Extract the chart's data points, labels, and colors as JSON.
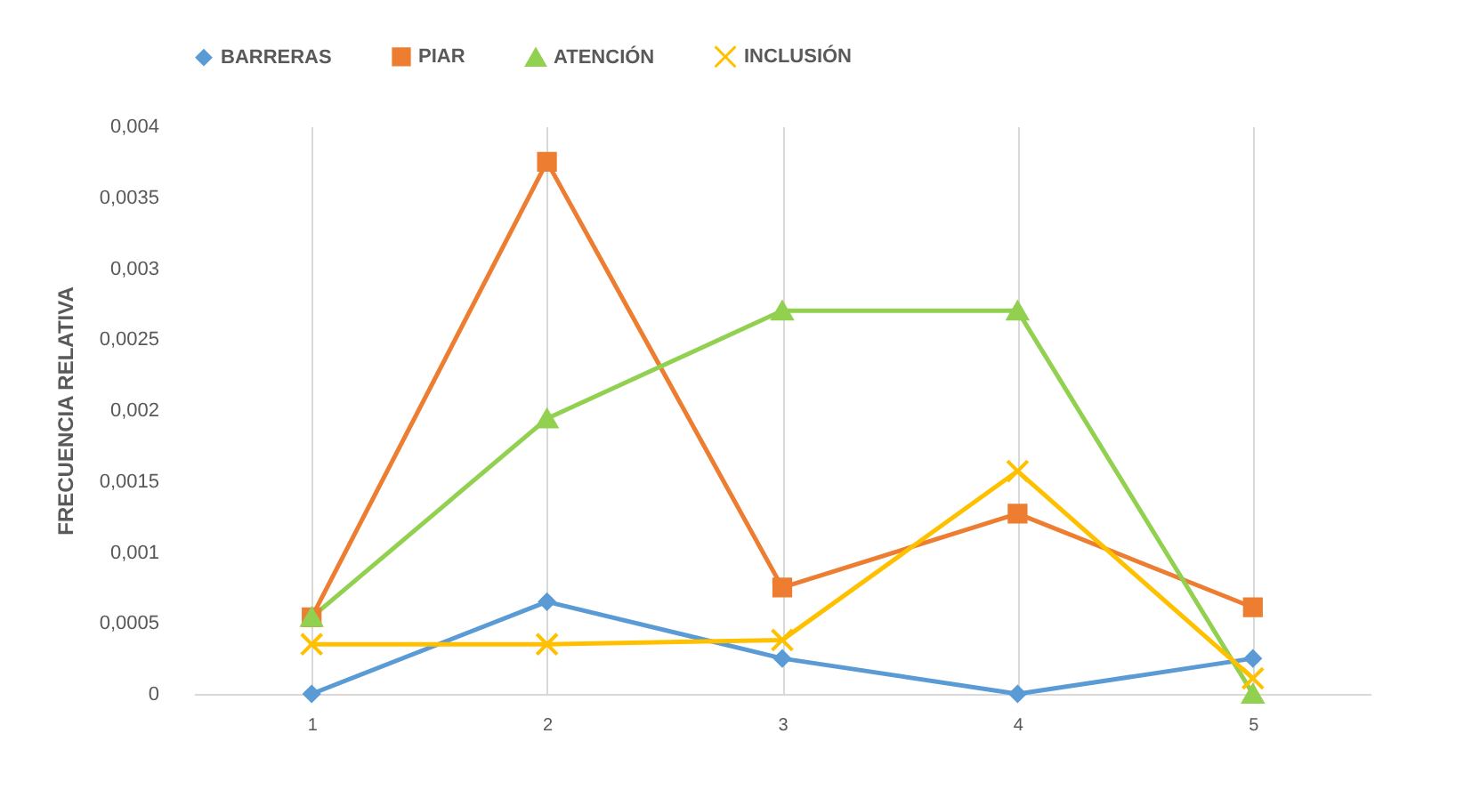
{
  "chart_data": {
    "type": "line",
    "ylabel": "FRECUENCIA RELATIVA",
    "categories": [
      "1",
      "2",
      "3",
      "4",
      "5"
    ],
    "series": [
      {
        "name": "BARRERAS",
        "color": "#5b9bd5",
        "marker": "diamond",
        "values": [
          0,
          0.00065,
          0.00025,
          0,
          0.00025
        ]
      },
      {
        "name": "PIAR",
        "color": "#ed7d31",
        "marker": "square",
        "values": [
          0.00054,
          0.00375,
          0.00075,
          0.00127,
          0.00061
        ]
      },
      {
        "name": "ATENCIÓN",
        "color": "#92d050",
        "marker": "triangle",
        "values": [
          0.00054,
          0.00194,
          0.0027,
          0.0027,
          0
        ]
      },
      {
        "name": "INCLUSIÓN",
        "color": "#ffc000",
        "marker": "cross",
        "values": [
          0.00035,
          0.00035,
          0.00038,
          0.00157,
          0.00011
        ]
      }
    ],
    "ylim": [
      0,
      0.004
    ],
    "yticks": [
      0,
      {
        "value": 0.0005,
        "label": "0,0005"
      },
      {
        "value": 0.001,
        "label": "0,001"
      },
      {
        "value": 0.0015,
        "label": "0,0015"
      },
      {
        "value": 0.002,
        "label": "0,002"
      },
      {
        "value": 0.0025,
        "label": "0,0025"
      },
      {
        "value": 0.003,
        "label": "0,003"
      },
      {
        "value": 0.0035,
        "label": "0,0035"
      },
      {
        "value": 0.004,
        "label": "0,004"
      }
    ],
    "grid": "x",
    "legend": "top",
    "line_style": "solid"
  }
}
